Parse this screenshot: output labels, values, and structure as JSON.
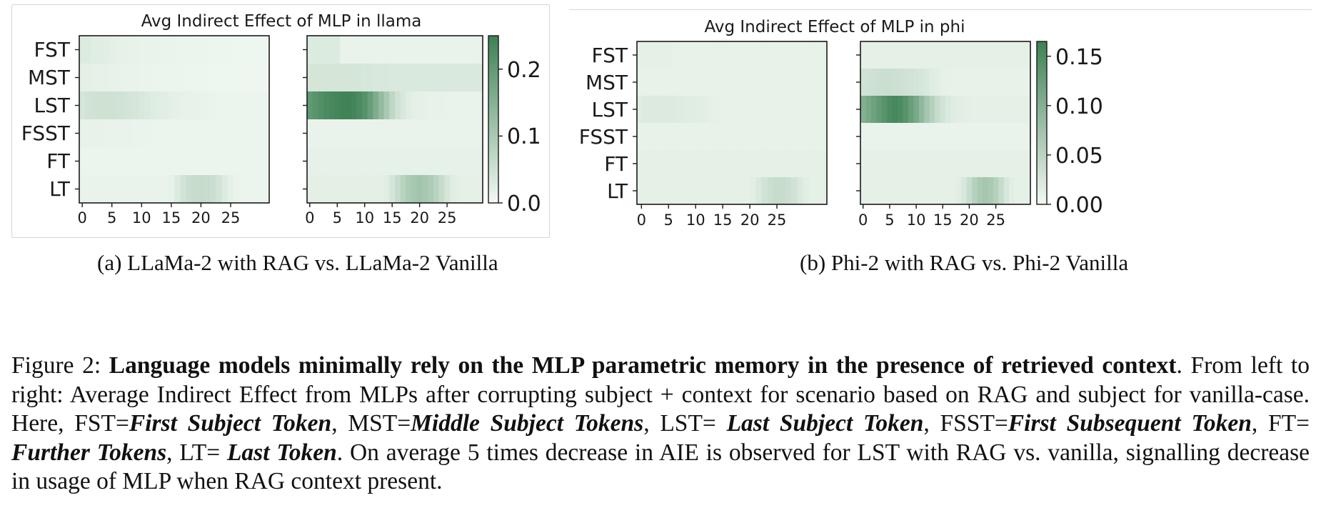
{
  "chart_data": [
    {
      "type": "heatmap",
      "title": "Avg Indirect Effect of MLP in llama",
      "rows": [
        "FST",
        "MST",
        "LST",
        "FSST",
        "FT",
        "LT"
      ],
      "x_ticks": [
        "0",
        "5",
        "10",
        "15",
        "20",
        "25"
      ],
      "num_layers": 32,
      "colorbar": {
        "range": [
          0,
          0.25
        ],
        "ticks": [
          "0.0",
          "0.1",
          "0.2"
        ],
        "tick_values": [
          0,
          0.1,
          0.2
        ]
      },
      "panels": [
        {
          "name": "LLaMa-2 with RAG",
          "values": [
            [
              0.03,
              0.03,
              0.025,
              0.024,
              0.022,
              0.02,
              0.018,
              0.016,
              0.015,
              0.014,
              0.013,
              0.013,
              0.012,
              0.012,
              0.011,
              0.011,
              0.01,
              0.01,
              0.01,
              0.009,
              0.009,
              0.009,
              0.008,
              0.008,
              0.008,
              0.008,
              0.007,
              0.007,
              0.007,
              0.007,
              0.007,
              0.007
            ],
            [
              0.02,
              0.02,
              0.018,
              0.017,
              0.016,
              0.015,
              0.014,
              0.013,
              0.012,
              0.012,
              0.011,
              0.011,
              0.01,
              0.01,
              0.01,
              0.009,
              0.009,
              0.009,
              0.008,
              0.008,
              0.008,
              0.008,
              0.007,
              0.007,
              0.007,
              0.007,
              0.007,
              0.007,
              0.006,
              0.006,
              0.006,
              0.006
            ],
            [
              0.04,
              0.045,
              0.048,
              0.05,
              0.05,
              0.05,
              0.048,
              0.045,
              0.042,
              0.04,
              0.036,
              0.032,
              0.028,
              0.025,
              0.022,
              0.02,
              0.018,
              0.016,
              0.015,
              0.014,
              0.013,
              0.012,
              0.011,
              0.01,
              0.01,
              0.01,
              0.01,
              0.009,
              0.009,
              0.009,
              0.009,
              0.009
            ],
            [
              0.015,
              0.015,
              0.014,
              0.014,
              0.013,
              0.013,
              0.012,
              0.012,
              0.012,
              0.011,
              0.011,
              0.011,
              0.01,
              0.01,
              0.01,
              0.01,
              0.01,
              0.01,
              0.01,
              0.01,
              0.01,
              0.01,
              0.01,
              0.01,
              0.01,
              0.009,
              0.009,
              0.009,
              0.009,
              0.009,
              0.009,
              0.009
            ],
            [
              0.01,
              0.01,
              0.01,
              0.01,
              0.01,
              0.01,
              0.01,
              0.01,
              0.01,
              0.01,
              0.01,
              0.01,
              0.01,
              0.01,
              0.01,
              0.01,
              0.01,
              0.01,
              0.01,
              0.01,
              0.01,
              0.01,
              0.01,
              0.01,
              0.01,
              0.01,
              0.01,
              0.01,
              0.01,
              0.01,
              0.01,
              0.01
            ],
            [
              0.012,
              0.012,
              0.012,
              0.012,
              0.012,
              0.012,
              0.012,
              0.012,
              0.012,
              0.012,
              0.012,
              0.012,
              0.012,
              0.012,
              0.012,
              0.015,
              0.03,
              0.045,
              0.055,
              0.06,
              0.062,
              0.06,
              0.055,
              0.045,
              0.03,
              0.018,
              0.012,
              0.01,
              0.01,
              0.01,
              0.01,
              0.01
            ]
          ]
        },
        {
          "name": "LLaMa-2 Vanilla",
          "values": [
            [
              0.03,
              0.03,
              0.03,
              0.03,
              0.03,
              0.03,
              0.012,
              0.012,
              0.012,
              0.012,
              0.012,
              0.012,
              0.012,
              0.012,
              0.012,
              0.012,
              0.012,
              0.012,
              0.012,
              0.012,
              0.012,
              0.012,
              0.012,
              0.012,
              0.012,
              0.012,
              0.012,
              0.012,
              0.012,
              0.012,
              0.012,
              0.012
            ],
            [
              0.04,
              0.04,
              0.04,
              0.04,
              0.04,
              0.04,
              0.04,
              0.04,
              0.04,
              0.04,
              0.038,
              0.038,
              0.036,
              0.036,
              0.035,
              0.034,
              0.034,
              0.034,
              0.034,
              0.034,
              0.034,
              0.034,
              0.034,
              0.034,
              0.034,
              0.034,
              0.034,
              0.034,
              0.034,
              0.034,
              0.034,
              0.034
            ],
            [
              0.2,
              0.21,
              0.22,
              0.23,
              0.235,
              0.24,
              0.245,
              0.245,
              0.24,
              0.23,
              0.215,
              0.19,
              0.16,
              0.13,
              0.1,
              0.07,
              0.05,
              0.035,
              0.025,
              0.02,
              0.018,
              0.016,
              0.015,
              0.014,
              0.014,
              0.013,
              0.013,
              0.013,
              0.013,
              0.013,
              0.013,
              0.013
            ],
            [
              0.012,
              0.012,
              0.012,
              0.012,
              0.012,
              0.012,
              0.012,
              0.012,
              0.012,
              0.012,
              0.012,
              0.012,
              0.012,
              0.012,
              0.012,
              0.012,
              0.012,
              0.012,
              0.012,
              0.012,
              0.012,
              0.012,
              0.012,
              0.012,
              0.012,
              0.012,
              0.012,
              0.012,
              0.012,
              0.012,
              0.012,
              0.012
            ],
            [
              0.016,
              0.016,
              0.016,
              0.016,
              0.016,
              0.016,
              0.016,
              0.016,
              0.016,
              0.016,
              0.016,
              0.016,
              0.016,
              0.016,
              0.016,
              0.016,
              0.016,
              0.016,
              0.016,
              0.016,
              0.016,
              0.016,
              0.016,
              0.016,
              0.016,
              0.016,
              0.016,
              0.016,
              0.016,
              0.016,
              0.016,
              0.016
            ],
            [
              0.02,
              0.02,
              0.02,
              0.02,
              0.02,
              0.02,
              0.02,
              0.02,
              0.02,
              0.02,
              0.02,
              0.02,
              0.02,
              0.02,
              0.025,
              0.04,
              0.06,
              0.08,
              0.095,
              0.105,
              0.11,
              0.105,
              0.095,
              0.08,
              0.06,
              0.04,
              0.025,
              0.02,
              0.018,
              0.018,
              0.018,
              0.018
            ]
          ]
        }
      ]
    },
    {
      "type": "heatmap",
      "title": "Avg Indirect Effect of MLP in phi",
      "rows": [
        "FST",
        "MST",
        "LST",
        "FSST",
        "FT",
        "LT"
      ],
      "x_ticks": [
        "0",
        "5",
        "10",
        "15",
        "20",
        "25"
      ],
      "num_layers": 32,
      "colorbar": {
        "range": [
          0,
          0.165
        ],
        "ticks": [
          "0.00",
          "0.05",
          "0.10",
          "0.15"
        ],
        "tick_values": [
          0,
          0.05,
          0.1,
          0.15
        ]
      },
      "panels": [
        {
          "name": "Phi-2 with RAG",
          "values": [
            [
              0.012,
              0.012,
              0.012,
              0.012,
              0.012,
              0.012,
              0.01,
              0.01,
              0.01,
              0.01,
              0.01,
              0.01,
              0.01,
              0.01,
              0.01,
              0.01,
              0.01,
              0.01,
              0.01,
              0.01,
              0.01,
              0.01,
              0.01,
              0.01,
              0.01,
              0.01,
              0.01,
              0.01,
              0.01,
              0.01,
              0.01,
              0.01
            ],
            [
              0.01,
              0.01,
              0.01,
              0.01,
              0.01,
              0.01,
              0.01,
              0.01,
              0.01,
              0.01,
              0.01,
              0.01,
              0.01,
              0.01,
              0.01,
              0.01,
              0.01,
              0.01,
              0.01,
              0.01,
              0.01,
              0.01,
              0.01,
              0.01,
              0.01,
              0.01,
              0.01,
              0.01,
              0.01,
              0.01,
              0.01,
              0.01
            ],
            [
              0.018,
              0.02,
              0.02,
              0.02,
              0.02,
              0.02,
              0.019,
              0.018,
              0.017,
              0.016,
              0.015,
              0.014,
              0.012,
              0.011,
              0.01,
              0.01,
              0.01,
              0.01,
              0.01,
              0.01,
              0.01,
              0.01,
              0.01,
              0.01,
              0.01,
              0.01,
              0.01,
              0.01,
              0.01,
              0.01,
              0.01,
              0.01
            ],
            [
              0.01,
              0.01,
              0.01,
              0.01,
              0.01,
              0.01,
              0.01,
              0.01,
              0.01,
              0.01,
              0.01,
              0.01,
              0.01,
              0.01,
              0.01,
              0.01,
              0.01,
              0.01,
              0.01,
              0.01,
              0.01,
              0.01,
              0.01,
              0.01,
              0.01,
              0.01,
              0.01,
              0.01,
              0.01,
              0.01,
              0.01,
              0.01
            ],
            [
              0.012,
              0.012,
              0.012,
              0.012,
              0.012,
              0.012,
              0.012,
              0.012,
              0.012,
              0.012,
              0.012,
              0.012,
              0.012,
              0.012,
              0.012,
              0.012,
              0.012,
              0.012,
              0.012,
              0.012,
              0.012,
              0.012,
              0.012,
              0.012,
              0.012,
              0.012,
              0.012,
              0.012,
              0.012,
              0.012,
              0.012,
              0.012
            ],
            [
              0.012,
              0.012,
              0.012,
              0.012,
              0.012,
              0.012,
              0.012,
              0.012,
              0.012,
              0.012,
              0.012,
              0.012,
              0.012,
              0.012,
              0.012,
              0.012,
              0.012,
              0.012,
              0.012,
              0.015,
              0.022,
              0.03,
              0.036,
              0.04,
              0.04,
              0.036,
              0.03,
              0.022,
              0.015,
              0.012,
              0.012,
              0.012
            ]
          ]
        },
        {
          "name": "Phi-2 Vanilla",
          "values": [
            [
              0.012,
              0.012,
              0.012,
              0.012,
              0.012,
              0.012,
              0.012,
              0.012,
              0.012,
              0.012,
              0.012,
              0.012,
              0.012,
              0.012,
              0.012,
              0.012,
              0.012,
              0.012,
              0.012,
              0.012,
              0.012,
              0.012,
              0.012,
              0.012,
              0.012,
              0.012,
              0.012,
              0.012,
              0.012,
              0.012,
              0.012,
              0.012
            ],
            [
              0.03,
              0.032,
              0.034,
              0.035,
              0.036,
              0.036,
              0.035,
              0.034,
              0.032,
              0.03,
              0.028,
              0.026,
              0.022,
              0.018,
              0.015,
              0.012,
              0.011,
              0.01,
              0.01,
              0.01,
              0.01,
              0.01,
              0.01,
              0.01,
              0.01,
              0.01,
              0.01,
              0.01,
              0.01,
              0.01,
              0.01,
              0.01
            ],
            [
              0.1,
              0.11,
              0.12,
              0.13,
              0.14,
              0.15,
              0.155,
              0.15,
              0.14,
              0.125,
              0.11,
              0.09,
              0.07,
              0.055,
              0.04,
              0.03,
              0.022,
              0.018,
              0.015,
              0.014,
              0.013,
              0.012,
              0.012,
              0.012,
              0.012,
              0.012,
              0.012,
              0.012,
              0.012,
              0.012,
              0.012,
              0.012
            ],
            [
              0.008,
              0.008,
              0.008,
              0.008,
              0.008,
              0.008,
              0.008,
              0.008,
              0.008,
              0.008,
              0.008,
              0.008,
              0.008,
              0.008,
              0.008,
              0.008,
              0.008,
              0.008,
              0.008,
              0.008,
              0.008,
              0.008,
              0.008,
              0.008,
              0.008,
              0.008,
              0.008,
              0.008,
              0.008,
              0.008,
              0.008,
              0.008
            ],
            [
              0.012,
              0.012,
              0.012,
              0.012,
              0.012,
              0.012,
              0.012,
              0.012,
              0.012,
              0.012,
              0.012,
              0.012,
              0.012,
              0.012,
              0.012,
              0.012,
              0.012,
              0.012,
              0.012,
              0.012,
              0.012,
              0.012,
              0.012,
              0.012,
              0.012,
              0.012,
              0.012,
              0.012,
              0.012,
              0.012,
              0.012,
              0.012
            ],
            [
              0.012,
              0.012,
              0.012,
              0.012,
              0.012,
              0.012,
              0.012,
              0.012,
              0.012,
              0.012,
              0.012,
              0.012,
              0.012,
              0.012,
              0.012,
              0.012,
              0.012,
              0.012,
              0.015,
              0.025,
              0.04,
              0.055,
              0.065,
              0.07,
              0.065,
              0.055,
              0.04,
              0.025,
              0.015,
              0.012,
              0.012,
              0.012
            ]
          ]
        }
      ]
    }
  ],
  "colors": {
    "low": "#f2f9f3",
    "high": "#3d8153",
    "frame": "#1a1a1a"
  },
  "subcaptions": {
    "a": "(a) LLaMa-2 with RAG vs. LLaMa-2 Vanilla",
    "b": "(b) Phi-2 with RAG vs. Phi-2 Vanilla"
  },
  "caption": {
    "label": "Figure 2: ",
    "bold_lead": "Language models minimally rely on the MLP parametric memory in the presence of retrieved context",
    "t1": ". From left to right: Average Indirect Effect from MLPs after corrupting subject + context for scenario based on RAG and subject for vanilla-case. Here, FST=",
    "fst": "First Subject Token",
    "t2": ", MST=",
    "mst": "Middle Subject Tokens",
    "t3": ", LST= ",
    "lst": "Last Subject Token",
    "t4": ", FSST=",
    "fsst": "First Subsequent Token",
    "t5": ", FT= ",
    "ft": "Further Tokens",
    "t6": ", LT= ",
    "lt": "Last Token",
    "t7": ". On average 5 times decrease in AIE is observed for LST with RAG vs. vanilla, signalling decrease in usage of MLP when RAG context present."
  }
}
